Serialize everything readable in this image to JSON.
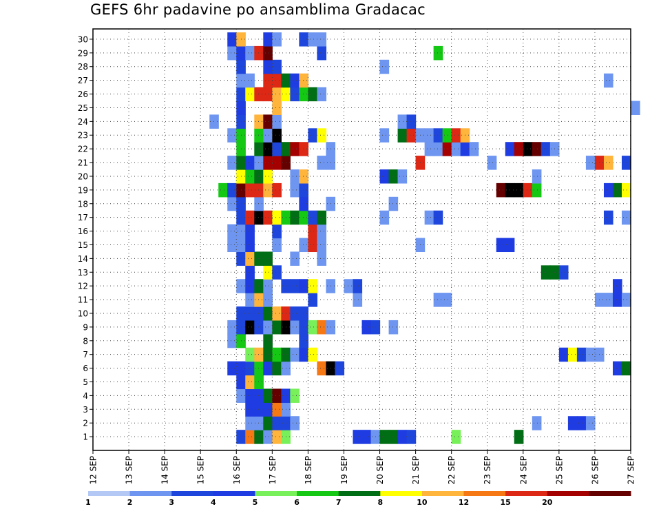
{
  "chart_data": {
    "type": "heatmap",
    "title": "GEFS 6hr padavine po ansamblima Gradacac",
    "x_tick_labels": [
      "12 SEP",
      "13 SEP",
      "14 SEP",
      "15 SEP",
      "16 SEP",
      "17 SEP",
      "18 SEP",
      "19 SEP",
      "20 SEP",
      "21 SEP",
      "22 SEP",
      "23 SEP",
      "24 SEP",
      "25 SEP",
      "26 SEP",
      "27 SEP"
    ],
    "y_tick_labels": [
      "1",
      "2",
      "3",
      "4",
      "5",
      "6",
      "7",
      "8",
      "9",
      "10",
      "11",
      "12",
      "13",
      "14",
      "15",
      "16",
      "17",
      "18",
      "19",
      "20",
      "21",
      "22",
      "23",
      "24",
      "25",
      "26",
      "27",
      "28",
      "29",
      "30"
    ],
    "x_time_steps_per_day": 4,
    "ensemble_members": 30,
    "grid": true,
    "color_scale": {
      "levels": [
        "1",
        "2",
        "3",
        "4",
        "5",
        "6",
        "7",
        "8",
        "10",
        "12",
        "15",
        "20"
      ],
      "colors": [
        "#b4c8f5",
        "#6e96f0",
        "#1e46dc",
        "#1e3ce1",
        "#78f05a",
        "#14c814",
        "#006e14",
        "#ffff00",
        "#ffb43c",
        "#f57814",
        "#dc2814",
        "#a50000",
        "#640000"
      ]
    },
    "values": [
      {
        "member": 1,
        "cells": [
          [
            16,
            2
          ],
          [
            17,
            9
          ],
          [
            18,
            6
          ],
          [
            19,
            1
          ],
          [
            20,
            8
          ],
          [
            21,
            4
          ],
          [
            29,
            3
          ],
          [
            30,
            3
          ],
          [
            31,
            1
          ],
          [
            32,
            6
          ],
          [
            33,
            6
          ],
          [
            34,
            3
          ],
          [
            35,
            2
          ],
          [
            40,
            4
          ],
          [
            47,
            6
          ]
        ]
      },
      {
        "member": 2,
        "cells": [
          [
            17,
            1
          ],
          [
            18,
            1
          ],
          [
            19,
            6
          ],
          [
            20,
            2
          ],
          [
            21,
            2
          ],
          [
            22,
            1
          ],
          [
            49,
            1
          ],
          [
            53,
            3
          ],
          [
            54,
            3
          ],
          [
            55,
            1
          ]
        ]
      },
      {
        "member": 3,
        "cells": [
          [
            17,
            3
          ],
          [
            18,
            3
          ],
          [
            19,
            3
          ],
          [
            20,
            9
          ],
          [
            21,
            1
          ]
        ]
      },
      {
        "member": 4,
        "cells": [
          [
            16,
            1
          ],
          [
            17,
            3
          ],
          [
            18,
            3
          ],
          [
            19,
            6
          ],
          [
            20,
            12
          ],
          [
            21,
            3
          ],
          [
            22,
            4
          ]
        ]
      },
      {
        "member": 5,
        "cells": [
          [
            16,
            3
          ],
          [
            17,
            8
          ],
          [
            18,
            5
          ]
        ]
      },
      {
        "member": 6,
        "cells": [
          [
            15,
            3
          ],
          [
            16,
            3
          ],
          [
            17,
            2
          ],
          [
            18,
            5
          ],
          [
            19,
            3
          ],
          [
            20,
            6
          ],
          [
            21,
            1
          ],
          [
            25,
            9
          ],
          [
            26,
            13
          ],
          [
            27,
            2
          ],
          [
            58,
            3
          ],
          [
            59,
            6
          ]
        ]
      },
      {
        "member": 7,
        "cells": [
          [
            17,
            4
          ],
          [
            18,
            8
          ],
          [
            19,
            6
          ],
          [
            20,
            5
          ],
          [
            21,
            6
          ],
          [
            22,
            1
          ],
          [
            23,
            3
          ],
          [
            24,
            7
          ],
          [
            52,
            3
          ],
          [
            53,
            7
          ],
          [
            54,
            2
          ],
          [
            55,
            1
          ],
          [
            56,
            1
          ]
        ]
      },
      {
        "member": 8,
        "cells": [
          [
            15,
            1
          ],
          [
            16,
            5
          ],
          [
            19,
            6
          ],
          [
            23,
            2
          ]
        ]
      },
      {
        "member": 9,
        "cells": [
          [
            15,
            1
          ],
          [
            16,
            2
          ],
          [
            17,
            13
          ],
          [
            18,
            2
          ],
          [
            19,
            1
          ],
          [
            20,
            6
          ],
          [
            21,
            13
          ],
          [
            22,
            1
          ],
          [
            23,
            2
          ],
          [
            24,
            4
          ],
          [
            25,
            9
          ],
          [
            26,
            1
          ],
          [
            30,
            3
          ],
          [
            31,
            2
          ],
          [
            33,
            1
          ]
        ]
      },
      {
        "member": 10,
        "cells": [
          [
            16,
            2
          ],
          [
            17,
            2
          ],
          [
            18,
            2
          ],
          [
            19,
            6
          ],
          [
            20,
            8
          ],
          [
            21,
            10
          ],
          [
            22,
            2
          ],
          [
            23,
            2
          ]
        ]
      },
      {
        "member": 11,
        "cells": [
          [
            17,
            1
          ],
          [
            18,
            8
          ],
          [
            19,
            1
          ],
          [
            24,
            2
          ],
          [
            29,
            1
          ],
          [
            38,
            1
          ],
          [
            39,
            1
          ],
          [
            56,
            1
          ],
          [
            57,
            1
          ],
          [
            58,
            3
          ],
          [
            59,
            1
          ]
        ]
      },
      {
        "member": 12,
        "cells": [
          [
            16,
            1
          ],
          [
            17,
            3
          ],
          [
            18,
            6
          ],
          [
            19,
            1
          ],
          [
            21,
            2
          ],
          [
            22,
            2
          ],
          [
            23,
            3
          ],
          [
            24,
            7
          ],
          [
            26,
            1
          ],
          [
            28,
            1
          ],
          [
            29,
            2
          ],
          [
            58,
            3
          ]
        ]
      },
      {
        "member": 13,
        "cells": [
          [
            17,
            3
          ],
          [
            19,
            7
          ],
          [
            20,
            2
          ],
          [
            50,
            6
          ],
          [
            51,
            6
          ],
          [
            52,
            2
          ]
        ]
      },
      {
        "member": 14,
        "cells": [
          [
            16,
            2
          ],
          [
            17,
            8
          ],
          [
            18,
            6
          ],
          [
            19,
            6
          ],
          [
            22,
            1
          ],
          [
            25,
            1
          ]
        ]
      },
      {
        "member": 15,
        "cells": [
          [
            15,
            1
          ],
          [
            16,
            1
          ],
          [
            17,
            3
          ],
          [
            20,
            1
          ],
          [
            23,
            1
          ],
          [
            24,
            10
          ],
          [
            25,
            1
          ],
          [
            36,
            1
          ],
          [
            45,
            3
          ],
          [
            46,
            3
          ]
        ]
      },
      {
        "member": 16,
        "cells": [
          [
            15,
            1
          ],
          [
            16,
            1
          ],
          [
            17,
            3
          ],
          [
            20,
            2
          ],
          [
            24,
            10
          ],
          [
            25,
            1
          ]
        ]
      },
      {
        "member": 17,
        "cells": [
          [
            16,
            2
          ],
          [
            17,
            10
          ],
          [
            18,
            13
          ],
          [
            19,
            10
          ],
          [
            20,
            7
          ],
          [
            21,
            5
          ],
          [
            22,
            6
          ],
          [
            23,
            5
          ],
          [
            24,
            2
          ],
          [
            25,
            6
          ],
          [
            32,
            1
          ],
          [
            37,
            1
          ],
          [
            38,
            2
          ],
          [
            57,
            2
          ],
          [
            59,
            1
          ]
        ]
      },
      {
        "member": 18,
        "cells": [
          [
            15,
            1
          ],
          [
            16,
            2
          ],
          [
            18,
            1
          ],
          [
            23,
            3
          ],
          [
            26,
            1
          ],
          [
            33,
            1
          ]
        ]
      },
      {
        "member": 19,
        "cells": [
          [
            14,
            5
          ],
          [
            15,
            2
          ],
          [
            16,
            12
          ],
          [
            17,
            10
          ],
          [
            18,
            10
          ],
          [
            19,
            8
          ],
          [
            20,
            10
          ],
          [
            22,
            1
          ],
          [
            23,
            2
          ],
          [
            45,
            12
          ],
          [
            46,
            13
          ],
          [
            47,
            13
          ],
          [
            48,
            10
          ],
          [
            49,
            5
          ],
          [
            57,
            3
          ],
          [
            58,
            6
          ],
          [
            59,
            7
          ]
        ]
      },
      {
        "member": 20,
        "cells": [
          [
            16,
            7
          ],
          [
            17,
            5
          ],
          [
            18,
            6
          ],
          [
            19,
            7
          ],
          [
            22,
            1
          ],
          [
            23,
            8
          ],
          [
            32,
            3
          ],
          [
            33,
            6
          ],
          [
            34,
            1
          ],
          [
            49,
            1
          ]
        ]
      },
      {
        "member": 21,
        "cells": [
          [
            15,
            1
          ],
          [
            16,
            6
          ],
          [
            17,
            3
          ],
          [
            18,
            1
          ],
          [
            19,
            11
          ],
          [
            20,
            11
          ],
          [
            21,
            12
          ],
          [
            25,
            1
          ],
          [
            26,
            1
          ],
          [
            36,
            10
          ],
          [
            44,
            1
          ],
          [
            55,
            1
          ],
          [
            56,
            10
          ],
          [
            57,
            8
          ],
          [
            59,
            2
          ]
        ]
      },
      {
        "member": 22,
        "cells": [
          [
            16,
            5
          ],
          [
            18,
            6
          ],
          [
            19,
            13
          ],
          [
            20,
            2
          ],
          [
            21,
            6
          ],
          [
            22,
            11
          ],
          [
            23,
            10
          ],
          [
            26,
            1
          ],
          [
            37,
            1
          ],
          [
            38,
            1
          ],
          [
            39,
            11
          ],
          [
            40,
            1
          ],
          [
            41,
            3
          ],
          [
            42,
            1
          ],
          [
            46,
            3
          ],
          [
            47,
            11
          ],
          [
            48,
            14
          ],
          [
            49,
            12
          ],
          [
            50,
            2
          ],
          [
            51,
            1
          ]
        ]
      },
      {
        "member": 23,
        "cells": [
          [
            15,
            1
          ],
          [
            16,
            5
          ],
          [
            18,
            5
          ],
          [
            19,
            1
          ],
          [
            20,
            14
          ],
          [
            24,
            2
          ],
          [
            25,
            7
          ],
          [
            32,
            1
          ],
          [
            34,
            6
          ],
          [
            35,
            10
          ],
          [
            36,
            1
          ],
          [
            37,
            1
          ],
          [
            38,
            2
          ],
          [
            39,
            5
          ],
          [
            40,
            10
          ],
          [
            41,
            8
          ]
        ]
      },
      {
        "member": 24,
        "cells": [
          [
            13,
            1
          ],
          [
            16,
            2
          ],
          [
            18,
            8
          ],
          [
            19,
            12
          ],
          [
            20,
            1
          ],
          [
            34,
            1
          ],
          [
            35,
            2
          ]
        ]
      },
      {
        "member": 25,
        "cells": [
          [
            16,
            3
          ],
          [
            20,
            8
          ],
          [
            60,
            1
          ]
        ]
      },
      {
        "member": 26,
        "cells": [
          [
            16,
            2
          ],
          [
            17,
            7
          ],
          [
            18,
            10
          ],
          [
            19,
            10
          ],
          [
            20,
            8
          ],
          [
            21,
            7
          ],
          [
            22,
            2
          ],
          [
            23,
            5
          ],
          [
            24,
            6
          ],
          [
            25,
            1
          ]
        ]
      },
      {
        "member": 27,
        "cells": [
          [
            16,
            1
          ],
          [
            17,
            1
          ],
          [
            19,
            10
          ],
          [
            20,
            10
          ],
          [
            21,
            6
          ],
          [
            22,
            3
          ],
          [
            23,
            8
          ],
          [
            57,
            1
          ]
        ]
      },
      {
        "member": 28,
        "cells": [
          [
            16,
            2
          ],
          [
            19,
            3
          ],
          [
            20,
            2
          ],
          [
            32,
            1
          ]
        ]
      },
      {
        "member": 29,
        "cells": [
          [
            15,
            1
          ],
          [
            16,
            3
          ],
          [
            17,
            1
          ],
          [
            18,
            10
          ],
          [
            19,
            12
          ],
          [
            25,
            2
          ],
          [
            38,
            5
          ]
        ]
      },
      {
        "member": 30,
        "cells": [
          [
            15,
            3
          ],
          [
            16,
            8
          ],
          [
            19,
            3
          ],
          [
            20,
            1
          ],
          [
            23,
            2
          ],
          [
            24,
            1
          ],
          [
            25,
            1
          ]
        ]
      }
    ]
  }
}
